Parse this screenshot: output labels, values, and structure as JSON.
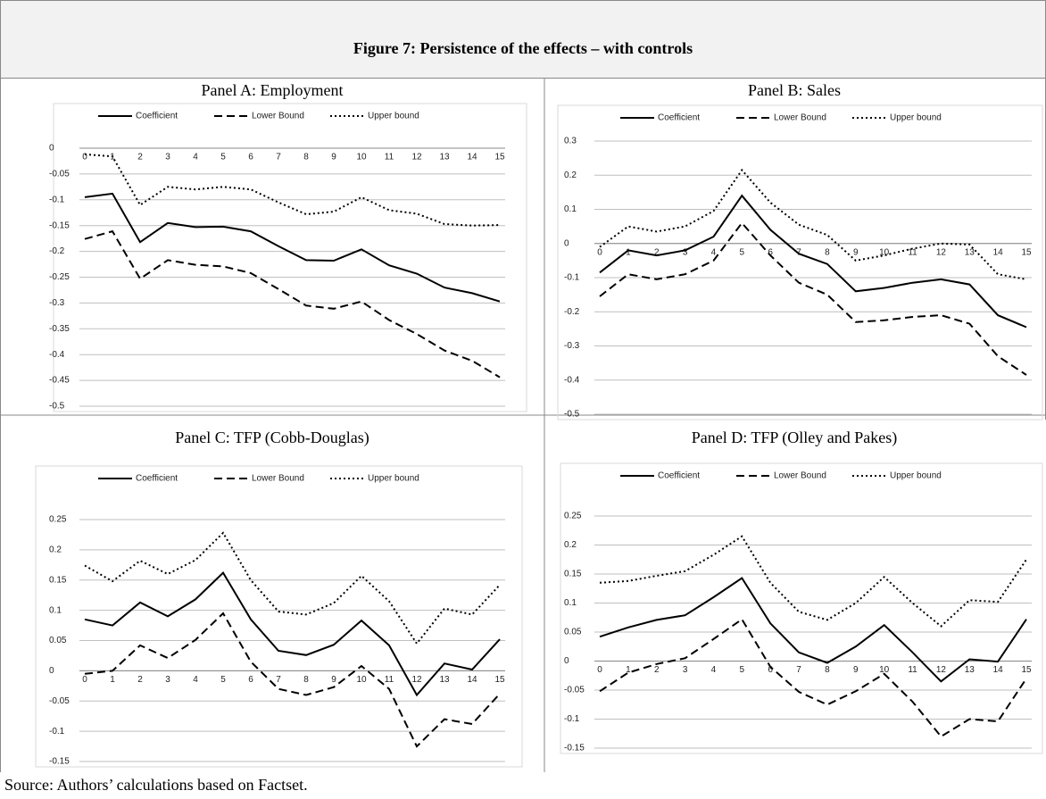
{
  "figure_title": "Figure 7: Persistence of the effects – with controls",
  "source": "Source: Authors’ calculations based on Factset.",
  "chart_data": [
    {
      "type": "line",
      "title": "Panel A: Employment",
      "categories": [
        "0",
        "1",
        "2",
        "3",
        "4",
        "5",
        "6",
        "7",
        "8",
        "9",
        "10",
        "11",
        "12",
        "13",
        "14",
        "15"
      ],
      "ylim": [
        -0.5,
        0
      ],
      "yticks": [
        0,
        -0.05,
        -0.1,
        -0.15,
        -0.2,
        -0.25,
        -0.3,
        -0.35,
        -0.4,
        -0.45,
        -0.5
      ],
      "grid": true,
      "series": [
        {
          "name": "Coefficient",
          "color": "#000000",
          "dash": "solid",
          "values": [
            -0.095,
            -0.088,
            -0.182,
            -0.145,
            -0.153,
            -0.152,
            -0.161,
            -0.19,
            -0.217,
            -0.218,
            -0.196,
            -0.227,
            -0.243,
            -0.27,
            -0.281,
            -0.297
          ]
        },
        {
          "name": "Lower Bound",
          "color": "#000000",
          "dash": "dashed",
          "values": [
            -0.176,
            -0.161,
            -0.253,
            -0.217,
            -0.226,
            -0.229,
            -0.242,
            -0.273,
            -0.305,
            -0.311,
            -0.297,
            -0.333,
            -0.36,
            -0.392,
            -0.412,
            -0.444
          ]
        },
        {
          "name": "Upper bound",
          "color": "#000000",
          "dash": "dotted",
          "values": [
            -0.012,
            -0.016,
            -0.11,
            -0.075,
            -0.08,
            -0.075,
            -0.08,
            -0.105,
            -0.128,
            -0.123,
            -0.095,
            -0.12,
            -0.127,
            -0.147,
            -0.15,
            -0.149
          ]
        }
      ]
    },
    {
      "type": "line",
      "title": "Panel B: Sales",
      "categories": [
        "0",
        "1",
        "2",
        "3",
        "4",
        "5",
        "6",
        "7",
        "8",
        "9",
        "10",
        "11",
        "12",
        "13",
        "14",
        "15"
      ],
      "ylim": [
        -0.5,
        0.3
      ],
      "yticks": [
        0.3,
        0.2,
        0.1,
        0,
        -0.1,
        -0.2,
        -0.3,
        -0.4,
        -0.5
      ],
      "grid": true,
      "series": [
        {
          "name": "Coefficient",
          "color": "#000000",
          "dash": "solid",
          "values": [
            -0.085,
            -0.02,
            -0.035,
            -0.02,
            0.02,
            0.14,
            0.04,
            -0.03,
            -0.06,
            -0.14,
            -0.13,
            -0.115,
            -0.105,
            -0.12,
            -0.21,
            -0.245
          ]
        },
        {
          "name": "Lower Bound",
          "color": "#000000",
          "dash": "dashed",
          "values": [
            -0.155,
            -0.09,
            -0.105,
            -0.09,
            -0.05,
            0.06,
            -0.035,
            -0.115,
            -0.15,
            -0.23,
            -0.225,
            -0.215,
            -0.21,
            -0.235,
            -0.33,
            -0.385
          ]
        },
        {
          "name": "Upper bound",
          "color": "#000000",
          "dash": "dotted",
          "values": [
            -0.01,
            0.05,
            0.035,
            0.05,
            0.095,
            0.215,
            0.12,
            0.055,
            0.025,
            -0.05,
            -0.035,
            -0.015,
            0.0,
            -0.003,
            -0.09,
            -0.105
          ]
        }
      ]
    },
    {
      "type": "line",
      "title": "Panel C: TFP (Cobb-Douglas)",
      "categories": [
        "0",
        "1",
        "2",
        "3",
        "4",
        "5",
        "6",
        "7",
        "8",
        "9",
        "10",
        "11",
        "12",
        "13",
        "14",
        "15"
      ],
      "ylim": [
        -0.15,
        0.25
      ],
      "yticks": [
        0.25,
        0.2,
        0.15,
        0.1,
        0.05,
        0,
        -0.05,
        -0.1,
        -0.15
      ],
      "grid": true,
      "series": [
        {
          "name": "Coefficient",
          "color": "#000000",
          "dash": "solid",
          "values": [
            0.085,
            0.075,
            0.113,
            0.09,
            0.118,
            0.162,
            0.085,
            0.033,
            0.026,
            0.043,
            0.083,
            0.042,
            -0.04,
            0.012,
            0.002,
            0.052
          ]
        },
        {
          "name": "Lower Bound",
          "color": "#000000",
          "dash": "dashed",
          "values": [
            -0.005,
            0.0,
            0.042,
            0.021,
            0.051,
            0.095,
            0.015,
            -0.03,
            -0.04,
            -0.027,
            0.008,
            -0.03,
            -0.125,
            -0.08,
            -0.088,
            -0.038
          ]
        },
        {
          "name": "Upper bound",
          "color": "#000000",
          "dash": "dotted",
          "values": [
            0.174,
            0.148,
            0.182,
            0.16,
            0.183,
            0.228,
            0.15,
            0.098,
            0.093,
            0.112,
            0.157,
            0.115,
            0.045,
            0.103,
            0.093,
            0.142
          ]
        }
      ]
    },
    {
      "type": "line",
      "title": "Panel D: TFP (Olley and Pakes)",
      "categories": [
        "0",
        "1",
        "2",
        "3",
        "4",
        "5",
        "6",
        "7",
        "8",
        "9",
        "10",
        "11",
        "12",
        "13",
        "14",
        "15"
      ],
      "ylim": [
        -0.15,
        0.25
      ],
      "yticks": [
        0.25,
        0.2,
        0.15,
        0.1,
        0.05,
        0,
        -0.05,
        -0.1,
        -0.15
      ],
      "grid": true,
      "series": [
        {
          "name": "Coefficient",
          "color": "#000000",
          "dash": "solid",
          "values": [
            0.042,
            0.058,
            0.071,
            0.079,
            0.11,
            0.143,
            0.065,
            0.015,
            -0.003,
            0.025,
            0.062,
            0.015,
            -0.035,
            0.003,
            -0.001,
            0.072
          ]
        },
        {
          "name": "Lower Bound",
          "color": "#000000",
          "dash": "dashed",
          "values": [
            -0.052,
            -0.02,
            -0.005,
            0.005,
            0.038,
            0.072,
            -0.01,
            -0.053,
            -0.075,
            -0.052,
            -0.022,
            -0.07,
            -0.13,
            -0.1,
            -0.104,
            -0.03
          ]
        },
        {
          "name": "Upper bound",
          "color": "#000000",
          "dash": "dotted",
          "values": [
            0.135,
            0.138,
            0.147,
            0.155,
            0.183,
            0.215,
            0.135,
            0.085,
            0.071,
            0.1,
            0.145,
            0.1,
            0.06,
            0.105,
            0.102,
            0.175
          ]
        }
      ]
    }
  ]
}
